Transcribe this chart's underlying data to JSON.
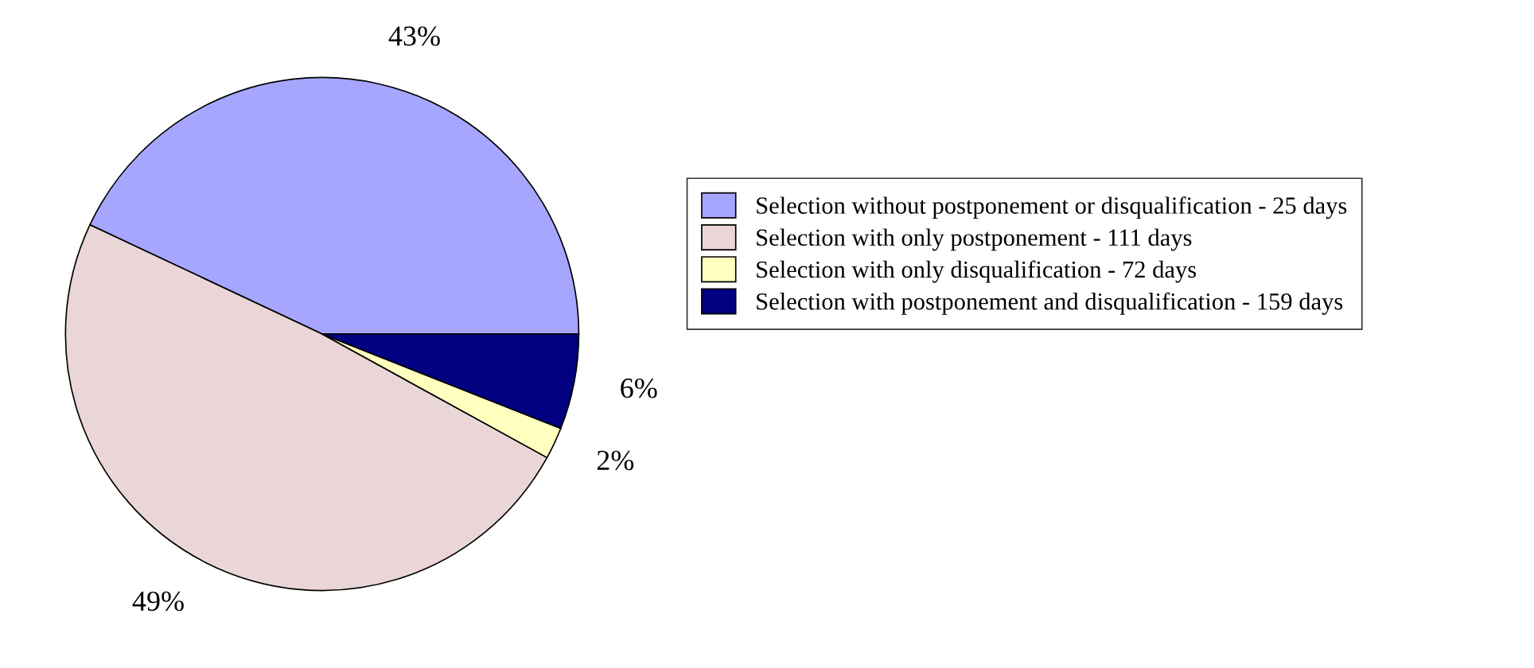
{
  "chart_data": {
    "type": "pie",
    "categories": [
      "Selection without postponement or disqualification - 25 days",
      "Selection with only postponement - 111 days",
      "Selection with only disqualification - 72 days",
      "Selection with postponement and disqualification - 159 days"
    ],
    "values": [
      43,
      49,
      2,
      6
    ],
    "value_labels": [
      "43%",
      "49%",
      "2%",
      "6%"
    ],
    "colors": [
      "#a6a6ff",
      "#ead6d6",
      "#ffffc0",
      "#000080"
    ],
    "legend": "right"
  }
}
